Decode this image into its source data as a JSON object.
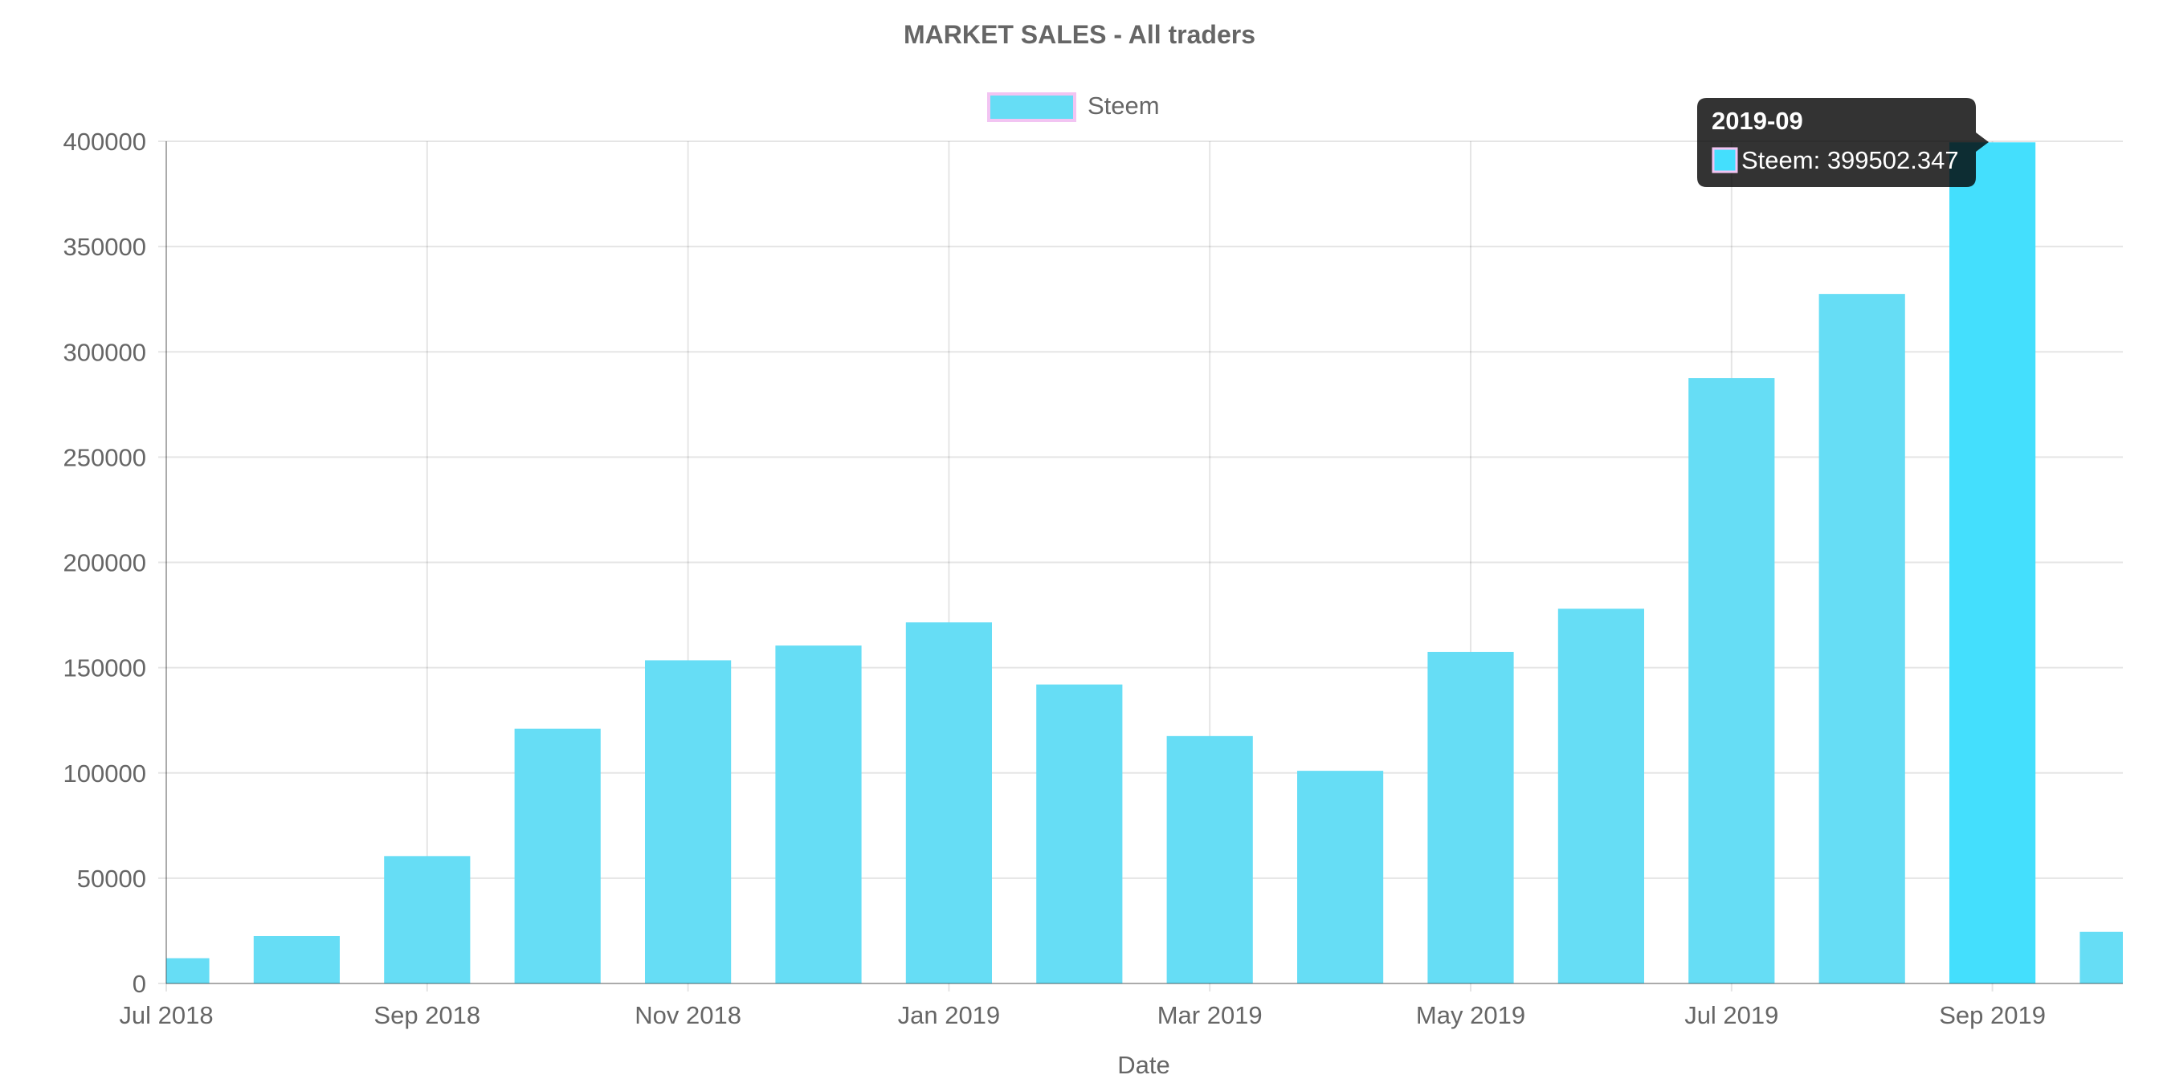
{
  "chart_data": {
    "type": "bar",
    "title": "MARKET SALES - All traders",
    "xlabel": "Date",
    "ylabel": "",
    "ylim": [
      0,
      400000
    ],
    "yticks": [
      0,
      50000,
      100000,
      150000,
      200000,
      250000,
      300000,
      350000,
      400000
    ],
    "x_tick_labels": [
      "Jul 2018",
      "Sep 2018",
      "Nov 2018",
      "Jan 2019",
      "Mar 2019",
      "May 2019",
      "Jul 2019",
      "Sep 2019"
    ],
    "categories": [
      "2018-07",
      "2018-08",
      "2018-09",
      "2018-10",
      "2018-11",
      "2018-12",
      "2019-01",
      "2019-02",
      "2019-03",
      "2019-04",
      "2019-05",
      "2019-06",
      "2019-07",
      "2019-08",
      "2019-09",
      "2019-10"
    ],
    "series": [
      {
        "name": "Steem",
        "values": [
          12000,
          22500,
          60500,
          121000,
          153500,
          160500,
          171500,
          142000,
          117500,
          101000,
          157500,
          178000,
          287500,
          327500,
          399502.347,
          24500
        ]
      }
    ],
    "grid": true,
    "legend": "top-center",
    "colors": {
      "bar": "#66ddf5",
      "bar_active": "#44dffd",
      "legend_border": "#f2c4f2"
    },
    "tooltip": {
      "title": "2019-09",
      "body": "Steem: 399502.347"
    }
  }
}
